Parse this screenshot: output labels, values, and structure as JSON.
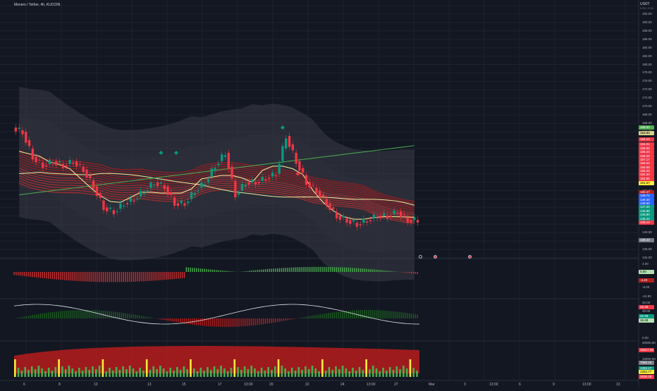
{
  "header": {
    "symbol_title": "Monero / Tether, 4h, KUCOIN",
    "currency": "USDT",
    "currency_sub": "0.00 / 0.00"
  },
  "price_axis": {
    "ticks": [
      "192.00",
      "190.00",
      "188.00",
      "186.00",
      "184.00",
      "182.00",
      "180.00",
      "178.00",
      "176.00",
      "174.00",
      "172.00",
      "170.00",
      "168.00",
      "166.00",
      "164.00",
      "162.00",
      "160.00",
      "158.00",
      "156.00",
      "154.00",
      "152.00",
      "150.00",
      "148.00",
      "146.00",
      "144.00",
      "142.00",
      "140.00",
      "138.00",
      "136.00",
      "134.00"
    ],
    "tags": [
      {
        "label": "165.00",
        "price": 165.0,
        "color": "#4caf50"
      },
      {
        "label": "163.60",
        "price": 163.6,
        "color": "#d4d28a"
      },
      {
        "label": "162.20",
        "price": 162.2,
        "color": "#f23645"
      },
      {
        "label": "161.01",
        "price": 161.0,
        "color": "#f23645"
      },
      {
        "label": "159.95",
        "price": 160.0,
        "color": "#f23645"
      },
      {
        "label": "159.20",
        "price": 159.1,
        "color": "#f23645"
      },
      {
        "label": "158.09",
        "price": 158.2,
        "color": "#f23645"
      },
      {
        "label": "157.17",
        "price": 157.3,
        "color": "#f23645"
      },
      {
        "label": "156.54",
        "price": 156.4,
        "color": "#f23645"
      },
      {
        "label": "155.88",
        "price": 155.5,
        "color": "#f23645"
      },
      {
        "label": "155.09",
        "price": 154.6,
        "color": "#f23645"
      },
      {
        "label": "154.30",
        "price": 153.7,
        "color": "#f23645"
      },
      {
        "label": "152.85",
        "price": 152.8,
        "color": "#f23645"
      },
      {
        "label": "151.67",
        "price": 151.8,
        "color": "#ffeb3b"
      },
      {
        "label": "150.47",
        "price": 149.6,
        "color": "#b71c1c"
      },
      {
        "label": "149.72",
        "price": 148.7,
        "color": "#2962ff"
      },
      {
        "label": "149.40",
        "price": 147.8,
        "color": "#2962ff"
      },
      {
        "label": "148.60",
        "price": 146.9,
        "color": "#2962ff"
      },
      {
        "label": "147.20",
        "price": 146.0,
        "color": "#089981"
      },
      {
        "label": "146.89",
        "price": 145.1,
        "color": "#089981"
      },
      {
        "label": "145.80",
        "price": 144.2,
        "color": "#089981"
      },
      {
        "label": "145.44",
        "price": 143.3,
        "color": "#089981"
      },
      {
        "label": "145.14",
        "price": 142.4,
        "color": "#f23645"
      },
      {
        "label": "138.24",
        "price": 138.2,
        "color": "#787b86"
      }
    ]
  },
  "x_axis": {
    "labels": [
      {
        "text": "6",
        "x": 37
      },
      {
        "text": "8",
        "x": 87
      },
      {
        "text": "10",
        "x": 137
      },
      {
        "text": "13",
        "x": 213
      },
      {
        "text": "15",
        "x": 262
      },
      {
        "text": "17",
        "x": 313
      },
      {
        "text": "13:00",
        "x": 350
      },
      {
        "text": "20",
        "x": 386
      },
      {
        "text": "22",
        "x": 437
      },
      {
        "text": "24",
        "x": 487
      },
      {
        "text": "13:00",
        "x": 524
      },
      {
        "text": "27",
        "x": 563
      },
      {
        "text": "Mar",
        "x": 612
      },
      {
        "text": "3",
        "x": 662
      },
      {
        "text": "13:00",
        "x": 698
      },
      {
        "text": "6",
        "x": 740
      },
      {
        "text": "9",
        "x": 788
      },
      {
        "text": "13:00",
        "x": 830
      },
      {
        "text": "13",
        "x": 878
      }
    ]
  },
  "panes": {
    "macd": {
      "ticks": [
        {
          "label": "4.00",
          "y": 375
        },
        {
          "label": "-0.00",
          "y": 386
        },
        {
          "label": "-4.23",
          "y": 398
        },
        {
          "label": "-8.00",
          "y": 408
        },
        {
          "label": "-12.00",
          "y": 421
        }
      ],
      "tags": [
        {
          "label": "0.00",
          "y": 386,
          "color": "#b2dfb0"
        },
        {
          "label": "-4.23",
          "y": 398,
          "color": "#b71c1c"
        }
      ]
    },
    "oscillator": {
      "ticks": [
        {
          "label": "40.00",
          "y": 430
        },
        {
          "label": "30.00",
          "y": 442
        },
        {
          "label": "0.00",
          "y": 480
        }
      ],
      "tags": [
        {
          "label": "32.48",
          "y": 436,
          "color": "#f23645"
        },
        {
          "label": "22.49",
          "y": 449,
          "color": "#089981"
        },
        {
          "label": "15.28",
          "y": 455,
          "color": "#b2dfb0"
        }
      ]
    },
    "volume": {
      "ticks": [
        {
          "label": "20000.00",
          "y": 487
        },
        {
          "label": "10000.00",
          "y": 510
        }
      ],
      "tags": [
        {
          "label": "15417.33",
          "y": 497,
          "color": "#f23645"
        },
        {
          "label": "7590.15",
          "y": 515,
          "color": "#787b86"
        },
        {
          "label": "1253.17",
          "y": 523,
          "color": "#089981"
        },
        {
          "label": "1252.77",
          "y": 528,
          "color": "#ffeb3b"
        },
        {
          "label": "2636.46",
          "y": 535,
          "color": "#f23645"
        }
      ]
    }
  },
  "signals": {
    "event_icons": [
      {
        "name": "info-event-icon",
        "x": 594,
        "y": 362
      },
      {
        "name": "flag-event-icon",
        "x": 615,
        "y": 362
      },
      {
        "name": "flag-event-icon",
        "x": 664,
        "y": 362
      }
    ]
  },
  "chart_data": {
    "type": "line",
    "title": "Monero / Tether, 4h, KUCOIN",
    "x": [
      0,
      1,
      2,
      3,
      4,
      5,
      6,
      7,
      8,
      9,
      10,
      11,
      12,
      13,
      14,
      15,
      16,
      17,
      18,
      19,
      20,
      21,
      22,
      23,
      24,
      25,
      26,
      27,
      28,
      29,
      30,
      31,
      32,
      33,
      34,
      35,
      36,
      37,
      38,
      39
    ],
    "series": [
      {
        "name": "close",
        "values": [
          164,
          158,
          156,
          157,
          156,
          157,
          155,
          151,
          146,
          145,
          147,
          148,
          150,
          152,
          151,
          147,
          147,
          150,
          152,
          156,
          159,
          149,
          152,
          152,
          153,
          154,
          163,
          157,
          152,
          150,
          147,
          144,
          143,
          142,
          143,
          144,
          144,
          145,
          143,
          143
        ]
      }
    ],
    "ylim": [
      134,
      194
    ],
    "grid": true,
    "legend": "none"
  }
}
